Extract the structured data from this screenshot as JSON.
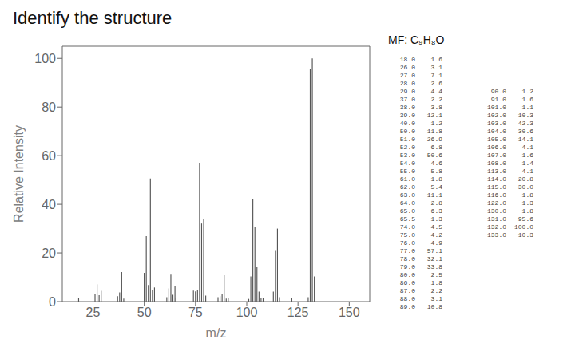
{
  "chart_data": {
    "type": "bar",
    "title": "Identify the structure",
    "annotations": [
      "MF: C₉H₈O"
    ],
    "x_label": "m/z",
    "y_label": "Relative Intensity",
    "x": [
      18.0,
      26.0,
      27.0,
      28.0,
      29.0,
      37.0,
      38.0,
      39.0,
      40.0,
      50.0,
      51.0,
      52.0,
      53.0,
      54.0,
      55.0,
      61.0,
      62.0,
      63.0,
      64.0,
      65.0,
      65.5,
      74.0,
      75.0,
      76.0,
      77.0,
      78.0,
      79.0,
      80.0,
      86.0,
      87.0,
      88.0,
      89.0,
      90.0,
      91.0,
      101.0,
      102.0,
      103.0,
      104.0,
      105.0,
      106.0,
      107.0,
      108.0,
      113.0,
      114.0,
      115.0,
      116.0,
      122.0,
      130.0,
      131.0,
      132.0,
      133.0
    ],
    "values": [
      1.6,
      3.1,
      7.1,
      2.6,
      4.4,
      2.2,
      3.8,
      12.1,
      1.2,
      11.8,
      26.9,
      6.8,
      50.6,
      4.6,
      5.8,
      1.8,
      5.4,
      11.1,
      2.8,
      6.3,
      1.3,
      4.5,
      4.2,
      4.9,
      57.1,
      32.1,
      33.8,
      2.5,
      1.8,
      2.2,
      3.1,
      10.8,
      1.2,
      1.6,
      1.1,
      10.3,
      42.3,
      30.6,
      14.1,
      4.1,
      1.6,
      1.4,
      4.1,
      20.8,
      30.0,
      1.8,
      1.3,
      1.8,
      95.6,
      100.0,
      10.3
    ],
    "color": "#555555",
    "xlim": [
      10,
      160
    ],
    "ylim": [
      0,
      105
    ],
    "xticks": [
      25,
      50,
      75,
      100,
      125,
      150
    ],
    "yticks": [
      0,
      20,
      40,
      60,
      80,
      100
    ],
    "grid": false,
    "table": [
      [
        [
          "18.0",
          "1.6"
        ],
        [
          "26.0",
          "3.1"
        ],
        [
          "27.0",
          "7.1"
        ],
        [
          "28.0",
          "2.6"
        ],
        [
          "29.0",
          "4.4"
        ],
        [
          "37.0",
          "2.2"
        ],
        [
          "38.0",
          "3.8"
        ],
        [
          "39.0",
          "12.1"
        ],
        [
          "40.0",
          "1.2"
        ],
        [
          "50.0",
          "11.8"
        ],
        [
          "51.0",
          "26.9"
        ],
        [
          "52.0",
          "6.8"
        ],
        [
          "53.0",
          "50.6"
        ],
        [
          "54.0",
          "4.6"
        ],
        [
          "55.0",
          "5.8"
        ],
        [
          "61.0",
          "1.8"
        ],
        [
          "62.0",
          "5.4"
        ],
        [
          "63.0",
          "11.1"
        ],
        [
          "64.0",
          "2.8"
        ],
        [
          "65.0",
          "6.3"
        ],
        [
          "65.5",
          "1.3"
        ],
        [
          "74.0",
          "4.5"
        ],
        [
          "75.0",
          "4.2"
        ],
        [
          "76.0",
          "4.9"
        ],
        [
          "77.0",
          "57.1"
        ],
        [
          "78.0",
          "32.1"
        ],
        [
          "79.0",
          "33.8"
        ],
        [
          "80.0",
          "2.5"
        ],
        [
          "86.0",
          "1.8"
        ],
        [
          "87.0",
          "2.2"
        ],
        [
          "88.0",
          "3.1"
        ],
        [
          "89.0",
          "10.8"
        ]
      ],
      [
        [
          "90.0",
          "1.2"
        ],
        [
          "91.0",
          "1.6"
        ],
        [
          "101.0",
          "1.1"
        ],
        [
          "102.0",
          "10.3"
        ],
        [
          "103.0",
          "42.3"
        ],
        [
          "104.0",
          "30.6"
        ],
        [
          "105.0",
          "14.1"
        ],
        [
          "106.0",
          "4.1"
        ],
        [
          "107.0",
          "1.6"
        ],
        [
          "108.0",
          "1.4"
        ],
        [
          "113.0",
          "4.1"
        ],
        [
          "114.0",
          "20.8"
        ],
        [
          "115.0",
          "30.0"
        ],
        [
          "116.0",
          "1.8"
        ],
        [
          "122.0",
          "1.3"
        ],
        [
          "130.0",
          "1.8"
        ],
        [
          "131.0",
          "95.6"
        ],
        [
          "132.0",
          "100.0"
        ],
        [
          "133.0",
          "10.3"
        ]
      ]
    ]
  }
}
